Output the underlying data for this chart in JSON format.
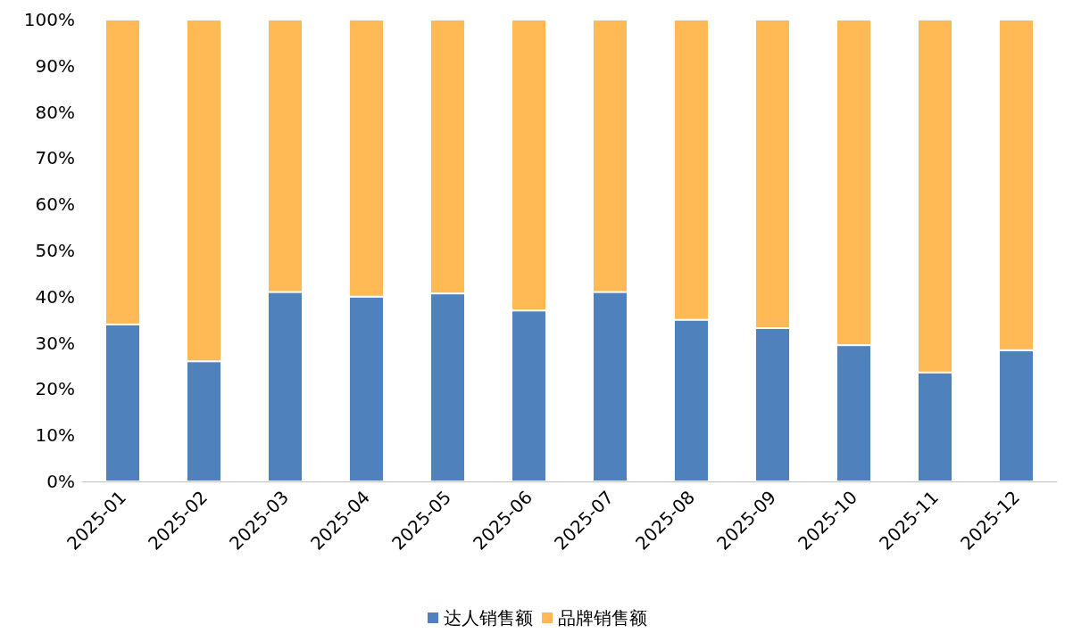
{
  "chart_data": {
    "type": "bar",
    "stacked": true,
    "categories": [
      "2025-01",
      "2025-02",
      "2025-03",
      "2025-04",
      "2025-05",
      "2025-06",
      "2025-07",
      "2025-08",
      "2025-09",
      "2025-10",
      "2025-11",
      "2025-12"
    ],
    "series": [
      {
        "name": "达人销售额",
        "color": "#4f81bd",
        "values": [
          34,
          26,
          41,
          40,
          40.7,
          37,
          41,
          35,
          33.2,
          29.5,
          23.6,
          28.4
        ]
      },
      {
        "name": "品牌销售额",
        "color": "#ffb955",
        "values": [
          66,
          74,
          59,
          60,
          59.3,
          63,
          59,
          65,
          66.8,
          70.5,
          76.4,
          71.6
        ]
      }
    ],
    "ylim": [
      0,
      100
    ],
    "yticks": [
      {
        "value": 0,
        "label": "0%"
      },
      {
        "value": 10,
        "label": "10%"
      },
      {
        "value": 20,
        "label": "20%"
      },
      {
        "value": 30,
        "label": "30%"
      },
      {
        "value": 40,
        "label": "40%"
      },
      {
        "value": 50,
        "label": "50%"
      },
      {
        "value": 60,
        "label": "60%"
      },
      {
        "value": 70,
        "label": "70%"
      },
      {
        "value": 80,
        "label": "80%"
      },
      {
        "value": 90,
        "label": "90%"
      },
      {
        "value": 100,
        "label": "100%"
      }
    ],
    "grid": false,
    "legend": "bottom"
  }
}
